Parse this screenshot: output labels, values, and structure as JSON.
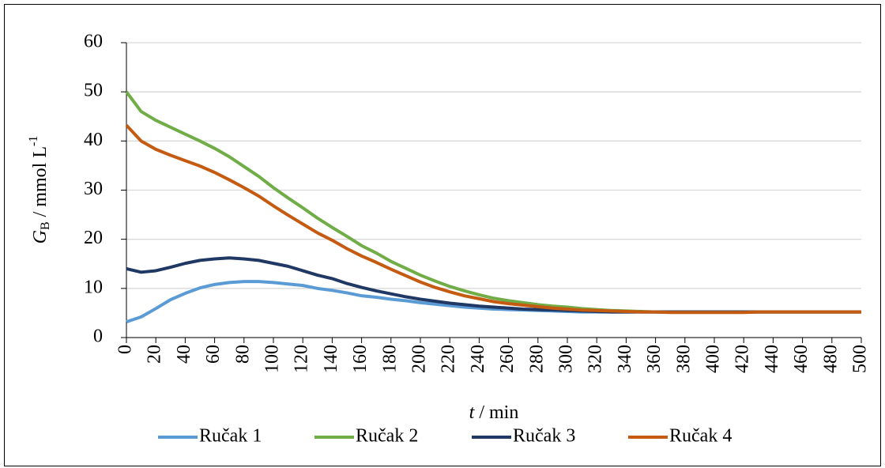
{
  "chart_data": {
    "type": "line",
    "x_label": {
      "symbol": "t",
      "text": " / min"
    },
    "y_label": {
      "symbol": "G",
      "subscript": "B",
      "text": " / mmol L",
      "superscript": "-1"
    },
    "x": [
      0,
      10,
      20,
      30,
      40,
      50,
      60,
      70,
      80,
      90,
      100,
      110,
      120,
      130,
      140,
      150,
      160,
      170,
      180,
      190,
      200,
      210,
      220,
      230,
      240,
      250,
      260,
      270,
      280,
      290,
      300,
      310,
      320,
      330,
      340,
      350,
      360,
      370,
      380,
      390,
      400,
      410,
      420,
      430,
      440,
      450,
      460,
      470,
      480,
      490,
      500
    ],
    "series": [
      {
        "name": "Ručak 1",
        "color": "#5b9bd5",
        "values": [
          3.2,
          4.2,
          5.9,
          7.7,
          9.0,
          10.1,
          10.8,
          11.2,
          11.4,
          11.4,
          11.2,
          10.9,
          10.6,
          10.0,
          9.6,
          9.1,
          8.5,
          8.2,
          7.8,
          7.5,
          7.1,
          6.8,
          6.5,
          6.2,
          6.0,
          5.8,
          5.7,
          5.6,
          5.5,
          5.4,
          5.3,
          5.2,
          5.2,
          5.2,
          5.2,
          5.2,
          5.2,
          5.2,
          5.2,
          5.2,
          5.2,
          5.2,
          5.2,
          5.2,
          5.2,
          5.2,
          5.2,
          5.2,
          5.2,
          5.2,
          5.2
        ]
      },
      {
        "name": "Ručak 2",
        "color": "#70ad47",
        "values": [
          50,
          46,
          44.2,
          42.8,
          41.4,
          40,
          38.5,
          36.8,
          34.8,
          32.8,
          30.5,
          28.4,
          26.4,
          24.3,
          22.4,
          20.6,
          18.7,
          17.2,
          15.5,
          14.1,
          12.7,
          11.5,
          10.4,
          9.5,
          8.7,
          8.0,
          7.5,
          7.1,
          6.7,
          6.4,
          6.2,
          5.9,
          5.7,
          5.5,
          5.4,
          5.3,
          5.2,
          5.2,
          5.2,
          5.2,
          5.2,
          5.2,
          5.2,
          5.2,
          5.2,
          5.2,
          5.2,
          5.2,
          5.2,
          5.2,
          5.2
        ]
      },
      {
        "name": "Ručak 3",
        "color": "#203864",
        "values": [
          14,
          13.3,
          13.6,
          14.3,
          15.1,
          15.7,
          16.0,
          16.2,
          16.0,
          15.7,
          15.1,
          14.5,
          13.6,
          12.7,
          12.0,
          11.0,
          10.2,
          9.5,
          8.9,
          8.3,
          7.8,
          7.4,
          7.0,
          6.7,
          6.4,
          6.2,
          6.0,
          5.8,
          5.7,
          5.6,
          5.5,
          5.4,
          5.3,
          5.2,
          5.2,
          5.2,
          5.2,
          5.2,
          5.2,
          5.2,
          5.2,
          5.2,
          5.2,
          5.2,
          5.2,
          5.2,
          5.2,
          5.2,
          5.2,
          5.2,
          5.2
        ]
      },
      {
        "name": "Ručak 4",
        "color": "#c55a11",
        "values": [
          43.2,
          40,
          38.3,
          37.1,
          36,
          34.9,
          33.6,
          32.1,
          30.5,
          28.8,
          26.8,
          24.9,
          23.1,
          21.3,
          19.8,
          18.1,
          16.6,
          15.3,
          13.9,
          12.6,
          11.3,
          10.2,
          9.3,
          8.5,
          7.9,
          7.3,
          6.9,
          6.6,
          6.3,
          6.0,
          5.8,
          5.6,
          5.5,
          5.4,
          5.3,
          5.2,
          5.2,
          5.1,
          5.1,
          5.1,
          5.1,
          5.1,
          5.1,
          5.2,
          5.2,
          5.2,
          5.2,
          5.2,
          5.2,
          5.2,
          5.2
        ]
      }
    ],
    "xlim": [
      0,
      500
    ],
    "xticks": [
      0,
      20,
      40,
      60,
      80,
      100,
      120,
      140,
      160,
      180,
      200,
      220,
      240,
      260,
      280,
      300,
      320,
      340,
      360,
      380,
      400,
      420,
      440,
      460,
      480,
      500
    ],
    "ylim": [
      0,
      60
    ],
    "yticks": [
      0,
      10,
      20,
      30,
      40,
      50,
      60
    ],
    "grid": true,
    "legend": "bottom"
  }
}
